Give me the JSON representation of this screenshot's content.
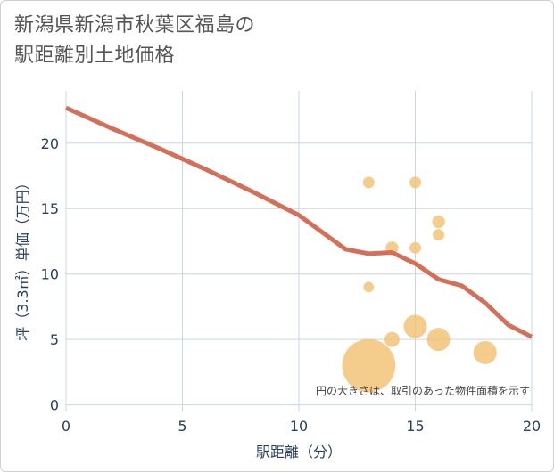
{
  "title_lines": [
    "新潟県新潟市秋葉区福島の",
    "駅距離別土地価格"
  ],
  "chart_data": {
    "type": "scatter+line",
    "xlabel": "駅距離（分）",
    "ylabel": "坪（3.3㎡）単価（万円）",
    "xlim": [
      0,
      20
    ],
    "ylim": [
      -0.5,
      24
    ],
    "xticks": [
      0,
      5,
      10,
      15,
      20
    ],
    "yticks": [
      0,
      5,
      10,
      15,
      20
    ],
    "annotation": "円の大きさは、取引のあった物件面積を示す",
    "colors": {
      "line": "#d4705a",
      "bubble": "#f2c274",
      "grid": "#c9d6e6",
      "axis": "#2a3f5f"
    },
    "trend_line": {
      "x": [
        0,
        2,
        4,
        6,
        8,
        10,
        12,
        13,
        14,
        15,
        16,
        17,
        18,
        19,
        20
      ],
      "y": [
        22.7,
        21.1,
        19.6,
        18.0,
        16.3,
        14.5,
        11.9,
        11.55,
        11.65,
        10.8,
        9.6,
        9.1,
        7.8,
        6.1,
        5.2
      ]
    },
    "points": [
      {
        "x": 13,
        "y": 17,
        "size": 1
      },
      {
        "x": 15,
        "y": 17,
        "size": 1
      },
      {
        "x": 16,
        "y": 14,
        "size": 1.1
      },
      {
        "x": 14,
        "y": 12,
        "size": 1.1
      },
      {
        "x": 15,
        "y": 12,
        "size": 1
      },
      {
        "x": 16,
        "y": 13,
        "size": 1
      },
      {
        "x": 13,
        "y": 9,
        "size": 0.9
      },
      {
        "x": 15,
        "y": 6,
        "size": 2
      },
      {
        "x": 16,
        "y": 5,
        "size": 2
      },
      {
        "x": 14,
        "y": 5,
        "size": 1.3
      },
      {
        "x": 18,
        "y": 4,
        "size": 2
      },
      {
        "x": 13,
        "y": 3,
        "size": 4.6
      }
    ]
  }
}
